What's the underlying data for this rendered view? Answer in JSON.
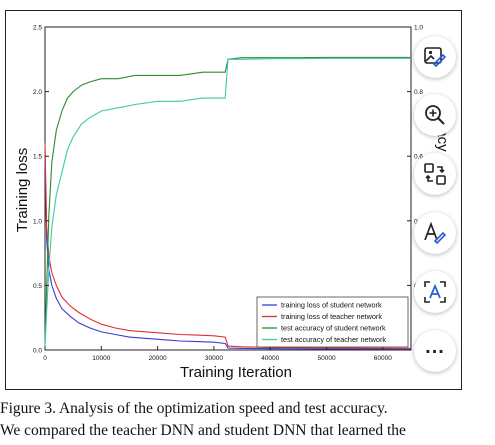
{
  "caption": {
    "line1": "Figure 3. Analysis of the optimization speed and test accuracy.",
    "line2": "We compared the teacher DNN and student DNN that learned the"
  },
  "chart_data": {
    "type": "line",
    "xlabel": "Training Iteration",
    "ylabel_left": "Training loss",
    "ylabel_right_visible": "acy",
    "xlim": [
      0,
      65000
    ],
    "ylim_left": [
      0,
      2.5
    ],
    "ylim_right": [
      0,
      1.0
    ],
    "x_ticks": [
      0,
      10000,
      20000,
      30000,
      40000,
      50000,
      60000
    ],
    "y_left_ticks": [
      "0.0",
      "0.5",
      "1.0",
      "1.5",
      "2.0",
      "2.5"
    ],
    "y_right_ticks": [
      "0.0",
      "0.2",
      "0.4",
      "0.6",
      "0.8",
      "1.0"
    ],
    "grid": false,
    "legend_position": "bottom-right",
    "series": [
      {
        "name": "training loss of student network",
        "axis": "left",
        "color": "#3a3ad6",
        "x": [
          0,
          300,
          700,
          1200,
          2000,
          3000,
          4500,
          6000,
          8000,
          10000,
          12500,
          15000,
          18000,
          21000,
          24000,
          27000,
          30000,
          32000,
          32500,
          35000,
          40000,
          45000,
          50000,
          55000,
          60000,
          65000
        ],
        "y": [
          1.5,
          0.85,
          0.62,
          0.5,
          0.4,
          0.32,
          0.26,
          0.21,
          0.17,
          0.14,
          0.12,
          0.1,
          0.09,
          0.08,
          0.07,
          0.065,
          0.06,
          0.05,
          0.015,
          0.012,
          0.01,
          0.009,
          0.008,
          0.007,
          0.007,
          0.006
        ]
      },
      {
        "name": "training loss of teacher network",
        "axis": "left",
        "color": "#e03030",
        "x": [
          0,
          300,
          700,
          1200,
          2000,
          3000,
          4500,
          6000,
          8000,
          10000,
          12500,
          15000,
          18000,
          21000,
          24000,
          27000,
          30000,
          32000,
          32500,
          35000,
          40000,
          45000,
          50000,
          55000,
          60000,
          65000
        ],
        "y": [
          1.6,
          0.95,
          0.72,
          0.6,
          0.5,
          0.41,
          0.34,
          0.29,
          0.24,
          0.2,
          0.17,
          0.15,
          0.14,
          0.13,
          0.12,
          0.115,
          0.11,
          0.1,
          0.03,
          0.025,
          0.02,
          0.018,
          0.016,
          0.015,
          0.014,
          0.013
        ]
      },
      {
        "name": "test accuracy of student network",
        "axis": "right",
        "color": "#2e8b2e",
        "x": [
          0,
          300,
          700,
          1200,
          2000,
          3000,
          4000,
          5000,
          6500,
          8000,
          10000,
          13000,
          16000,
          20000,
          24000,
          28000,
          31000,
          32000,
          32500,
          35000,
          40000,
          45000,
          50000,
          55000,
          60000,
          65000
        ],
        "y": [
          0.02,
          0.2,
          0.42,
          0.58,
          0.68,
          0.74,
          0.78,
          0.8,
          0.82,
          0.83,
          0.84,
          0.84,
          0.85,
          0.85,
          0.85,
          0.86,
          0.86,
          0.86,
          0.9,
          0.905,
          0.905,
          0.905,
          0.906,
          0.906,
          0.906,
          0.906
        ]
      },
      {
        "name": "test accuracy of teacher network",
        "axis": "right",
        "color": "#40c8b0",
        "x": [
          0,
          300,
          700,
          1200,
          2000,
          3000,
          4000,
          5000,
          6500,
          8000,
          10000,
          13000,
          16000,
          20000,
          24000,
          28000,
          31000,
          32000,
          32500,
          35000,
          40000,
          45000,
          50000,
          55000,
          60000,
          65000
        ],
        "y": [
          0.01,
          0.12,
          0.25,
          0.38,
          0.48,
          0.55,
          0.62,
          0.66,
          0.7,
          0.72,
          0.74,
          0.75,
          0.76,
          0.77,
          0.77,
          0.78,
          0.78,
          0.78,
          0.9,
          0.9,
          0.902,
          0.902,
          0.903,
          0.903,
          0.903,
          0.903
        ]
      }
    ]
  },
  "toolbar": {
    "buttons": [
      {
        "name": "image-edit-icon"
      },
      {
        "name": "zoom-in-icon"
      },
      {
        "name": "swap-layout-icon"
      },
      {
        "name": "text-edit-icon"
      },
      {
        "name": "text-scan-icon"
      },
      {
        "name": "more-options-icon",
        "label": "..."
      }
    ]
  }
}
